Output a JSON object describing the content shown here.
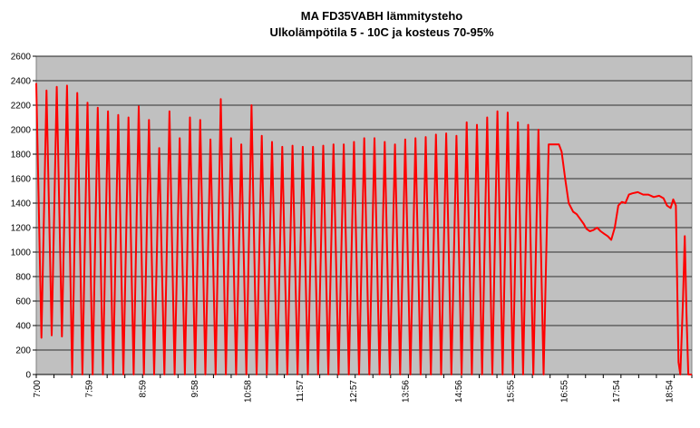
{
  "chart_data": {
    "type": "line",
    "title": "MA FD35VABH lämmitysteho",
    "subtitle": "Ulkolämpötila  5 - 10C ja kosteus 70-95%",
    "xlabel": "",
    "ylabel": "",
    "ylim": [
      0,
      2600
    ],
    "y_ticks": [
      "0",
      "200",
      "400",
      "600",
      "800",
      "1000",
      "1200",
      "1400",
      "1600",
      "1800",
      "2000",
      "2200",
      "2400",
      "2600"
    ],
    "x_tick_labels": [
      "7:00",
      "7:59",
      "8:59",
      "9:58",
      "10:58",
      "11:57",
      "12:57",
      "13:56",
      "14:56",
      "15:55",
      "16:55",
      "17:54",
      "18:54"
    ],
    "x_tick_minutes": [
      0,
      59,
      119,
      178,
      238,
      297,
      357,
      416,
      476,
      535,
      595,
      654,
      714
    ],
    "x_range_minutes": [
      0,
      740
    ],
    "grid": "horizontal",
    "plot_background": "#c0c0c0",
    "line_color": "#ff0000",
    "series": [
      {
        "cycling_phase": {
          "start_minute": 0,
          "end_minute": 590,
          "peaks": [
            2380,
            2320,
            2350,
            2360,
            2300,
            2220,
            2180,
            2150,
            2120,
            2100,
            2190,
            2080,
            1850,
            2150,
            1930,
            2100,
            2080,
            1920,
            2250,
            1930,
            1880,
            2200,
            1950,
            1900,
            1860,
            1870,
            1860,
            1860,
            1870,
            1880,
            1880,
            1900,
            1930,
            1930,
            1900,
            1880,
            1920,
            1930,
            1940,
            1960,
            1970,
            1950,
            2060,
            2040,
            2100,
            2150,
            2140,
            2060,
            2040,
            2000,
            1880
          ],
          "troughs": [
            300,
            320,
            310,
            0,
            0,
            0,
            0,
            0,
            0,
            0,
            0,
            0,
            0,
            0,
            0,
            0,
            0,
            0,
            0,
            0,
            0,
            0,
            0,
            0,
            0,
            0,
            0,
            0,
            0,
            0,
            0,
            0,
            0,
            0,
            0,
            0,
            0,
            0,
            0,
            0,
            0,
            0,
            0,
            0,
            0,
            0,
            0,
            0,
            0,
            0
          ]
        },
        "points": [
          [
            590,
            1880
          ],
          [
            593,
            1820
          ],
          [
            597,
            1600
          ],
          [
            601,
            1400
          ],
          [
            606,
            1330
          ],
          [
            610,
            1310
          ],
          [
            614,
            1270
          ],
          [
            618,
            1230
          ],
          [
            621,
            1190
          ],
          [
            625,
            1170
          ],
          [
            629,
            1180
          ],
          [
            633,
            1200
          ],
          [
            637,
            1170
          ],
          [
            641,
            1150
          ],
          [
            645,
            1130
          ],
          [
            649,
            1100
          ],
          [
            653,
            1200
          ],
          [
            657,
            1380
          ],
          [
            661,
            1410
          ],
          [
            665,
            1400
          ],
          [
            669,
            1470
          ],
          [
            673,
            1480
          ],
          [
            679,
            1490
          ],
          [
            685,
            1470
          ],
          [
            691,
            1470
          ],
          [
            697,
            1450
          ],
          [
            703,
            1460
          ],
          [
            708,
            1440
          ],
          [
            712,
            1380
          ],
          [
            716,
            1360
          ],
          [
            719,
            1430
          ],
          [
            722,
            1380
          ],
          [
            725,
            100
          ],
          [
            727,
            0
          ],
          [
            730,
            600
          ],
          [
            732,
            1130
          ],
          [
            734,
            500
          ],
          [
            736,
            0
          ],
          [
            740,
            0
          ]
        ]
      }
    ]
  }
}
